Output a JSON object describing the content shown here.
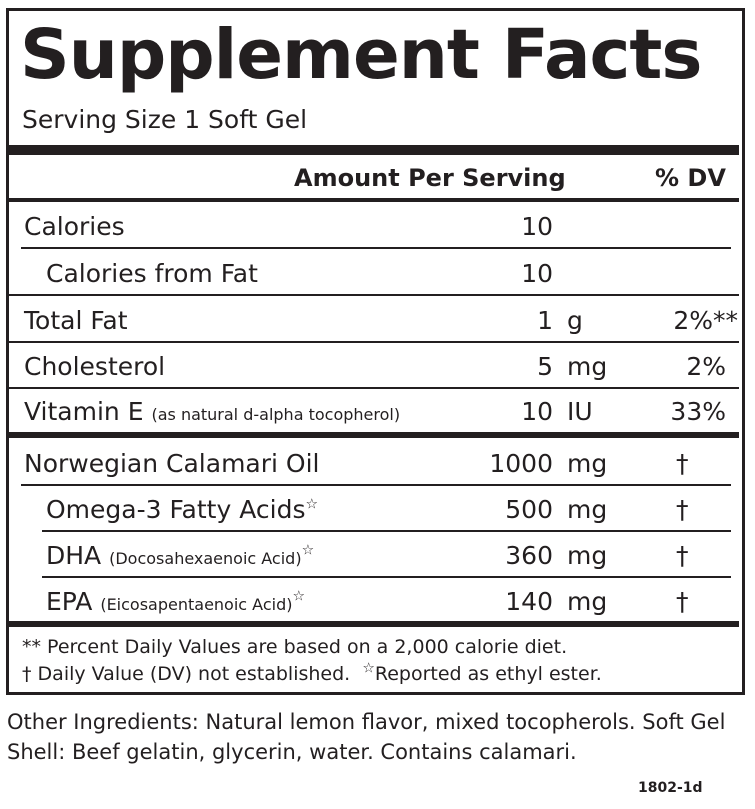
{
  "label": {
    "title": "Supplement Facts",
    "serving_size": "Serving Size 1 Soft Gel",
    "header": {
      "amount": "Amount Per Serving",
      "dv": "% DV"
    },
    "rows": [
      {
        "name": "Calories",
        "detail": "",
        "amount": "10",
        "unit": "",
        "dv": ""
      },
      {
        "name": "Calories from Fat",
        "detail": "",
        "amount": "10",
        "unit": "",
        "dv": ""
      },
      {
        "name": "Total Fat",
        "detail": "",
        "amount": "1",
        "unit": "g",
        "dv": "2%**"
      },
      {
        "name": "Cholesterol",
        "detail": "",
        "amount": "5",
        "unit": "mg",
        "dv": "2%"
      },
      {
        "name": "Vitamin E",
        "detail": "(as natural d-alpha tocopherol)",
        "amount": "10",
        "unit": "IU",
        "dv": "33%"
      },
      {
        "name": "Norwegian Calamari Oil",
        "detail": "",
        "amount": "1000",
        "unit": "mg",
        "dv": "†"
      },
      {
        "name": "Omega-3 Fatty Acids",
        "detail": "",
        "amount": "500",
        "unit": "mg",
        "dv": "†",
        "star": "☆"
      },
      {
        "name": "DHA",
        "detail": "(Docosahexaenoic Acid)",
        "amount": "360",
        "unit": "mg",
        "dv": "†",
        "star": "☆"
      },
      {
        "name": "EPA",
        "detail": "(Eicosapentaenoic Acid)",
        "amount": "140",
        "unit": "mg",
        "dv": "†",
        "star": "☆"
      }
    ],
    "footnotes": {
      "line1": "** Percent Daily Values are based on a 2,000 calorie diet.",
      "line2a": "† Daily Value (DV) not established.",
      "line2_star": "☆",
      "line2b": "Reported as ethyl ester."
    }
  },
  "other_ingredients": "Other Ingredients: Natural lemon flavor, mixed tocopherols. Soft Gel Shell: Beef gelatin, glycerin, water. Contains calamari.",
  "product_code": "1802-1d"
}
